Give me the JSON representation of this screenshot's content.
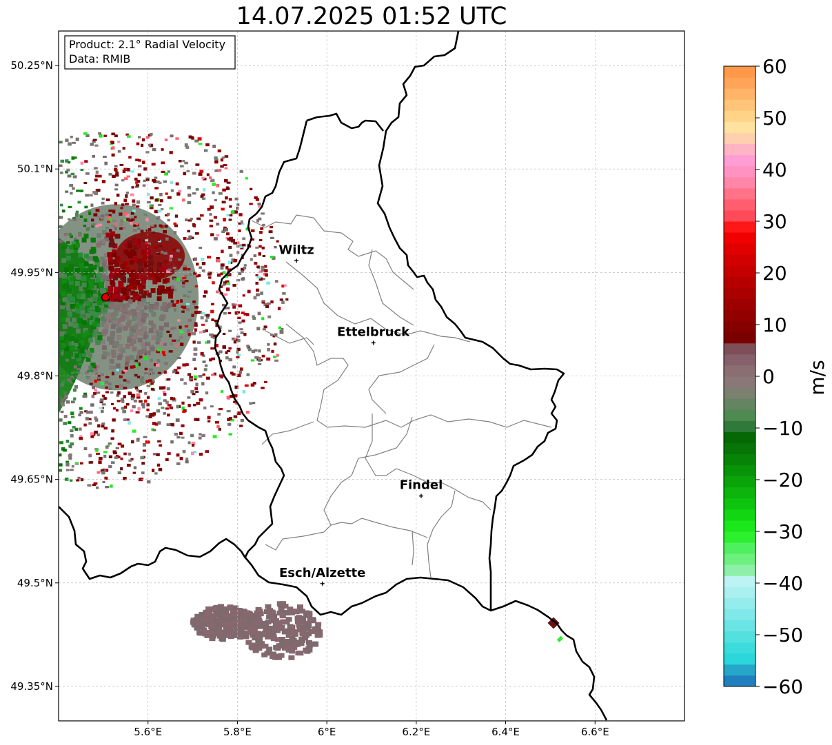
{
  "title": "14.07.2025 01:52 UTC",
  "info_box": {
    "product": "Product: 2.1° Radial Velocity",
    "source": "Data: RMIB"
  },
  "map": {
    "lon_range": [
      5.4,
      6.8
    ],
    "lat_range": [
      49.3,
      50.3
    ],
    "x_ticks": [
      {
        "value": 5.6,
        "label": "5.6°E"
      },
      {
        "value": 5.8,
        "label": "5.8°E"
      },
      {
        "value": 6.0,
        "label": "6°E"
      },
      {
        "value": 6.2,
        "label": "6.2°E"
      },
      {
        "value": 6.4,
        "label": "6.4°E"
      },
      {
        "value": 6.6,
        "label": "6.6°E"
      }
    ],
    "y_ticks": [
      {
        "value": 50.25,
        "label": "50.25°N"
      },
      {
        "value": 50.1,
        "label": "50.1°N"
      },
      {
        "value": 49.95,
        "label": "49.95°N"
      },
      {
        "value": 49.8,
        "label": "49.8°N"
      },
      {
        "value": 49.65,
        "label": "49.65°N"
      },
      {
        "value": 49.5,
        "label": "49.5°N"
      },
      {
        "value": 49.35,
        "label": "49.35°N"
      }
    ],
    "gridlines": true,
    "radar_site": {
      "lon": 5.505,
      "lat": 49.914
    },
    "cities": [
      {
        "name": "Wiltz",
        "lon": 5.932,
        "lat": 49.967
      },
      {
        "name": "Ettelbruck",
        "lon": 6.104,
        "lat": 49.848
      },
      {
        "name": "Findel",
        "lon": 6.211,
        "lat": 49.626
      },
      {
        "name": "Esch/Alzette",
        "lon": 5.99,
        "lat": 49.499
      }
    ]
  },
  "colorbar": {
    "unit": "m/s",
    "min": -60,
    "max": 60,
    "ticks": [
      {
        "value": 60,
        "label": "60"
      },
      {
        "value": 50,
        "label": "50"
      },
      {
        "value": 40,
        "label": "40"
      },
      {
        "value": 30,
        "label": "30"
      },
      {
        "value": 20,
        "label": "20"
      },
      {
        "value": 10,
        "label": "10"
      },
      {
        "value": 0,
        "label": "0"
      },
      {
        "value": -10,
        "label": "−10"
      },
      {
        "value": -20,
        "label": "−20"
      },
      {
        "value": -30,
        "label": "−30"
      },
      {
        "value": -40,
        "label": "−40"
      },
      {
        "value": -50,
        "label": "−50"
      },
      {
        "value": -60,
        "label": "−60"
      }
    ],
    "colors": [
      "#1f7fbf",
      "#26a7c9",
      "#2cd7dc",
      "#3ddcdc",
      "#55e0e0",
      "#6ae4e4",
      "#80e8e8",
      "#95ecec",
      "#aaf0f0",
      "#bdf3f3",
      "#8ef0a8",
      "#6ef07e",
      "#4ff060",
      "#2cf02e",
      "#1ae81a",
      "#12d612",
      "#0ec40e",
      "#0cb40c",
      "#0aa40a",
      "#089408",
      "#078407",
      "#067406",
      "#056805",
      "#2f7a3a",
      "#4f8a52",
      "#658462",
      "#7b8070",
      "#8a7878",
      "#8a6e72",
      "#86606a",
      "#7e4f58",
      "#7a0000",
      "#860000",
      "#920000",
      "#9e0000",
      "#aa0000",
      "#b60000",
      "#c40000",
      "#d20000",
      "#e00000",
      "#f00000",
      "#ff1616",
      "#ff4a5a",
      "#ff5e6e",
      "#ff7288",
      "#ff86a8",
      "#ff92c0",
      "#ff9ed4",
      "#ffb4c4",
      "#ffd0b0",
      "#ffe2a0",
      "#ffd488",
      "#ffc478",
      "#ffb468",
      "#ffa458",
      "#ff9848"
    ]
  }
}
